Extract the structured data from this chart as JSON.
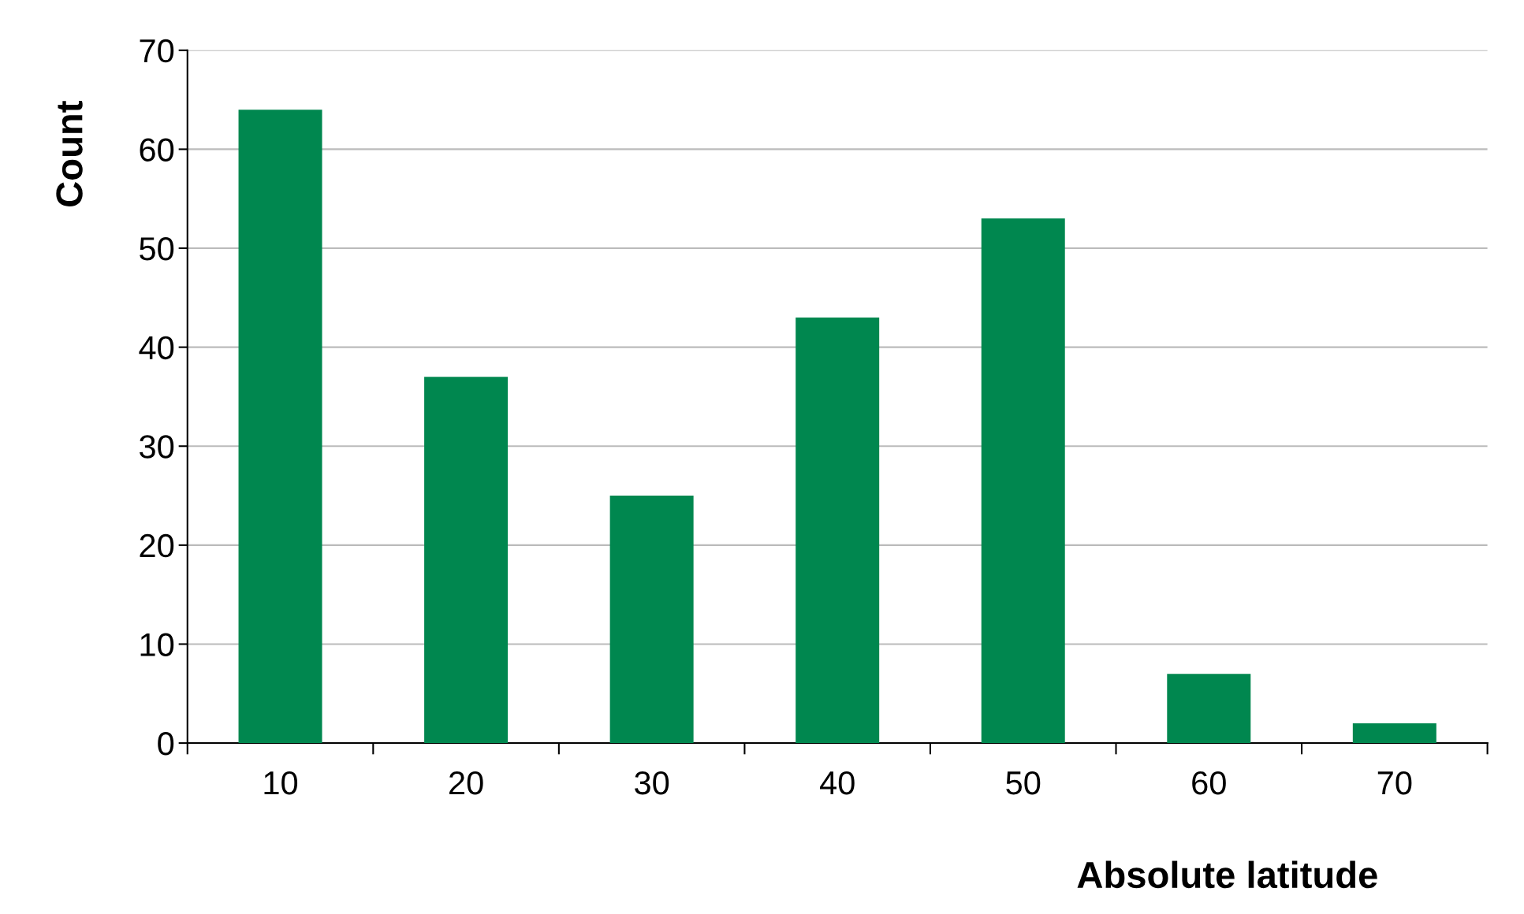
{
  "chart_data": {
    "type": "bar",
    "xlabel": "Absolute latitude",
    "ylabel": "Count",
    "categories": [
      "10",
      "20",
      "30",
      "40",
      "50",
      "60",
      "70"
    ],
    "values": [
      64,
      37,
      25,
      43,
      53,
      7,
      2
    ],
    "color": "#00874f",
    "ylim": [
      0,
      70
    ],
    "yticks": [
      0,
      10,
      20,
      30,
      40,
      50,
      60,
      70
    ],
    "grid": "y"
  }
}
